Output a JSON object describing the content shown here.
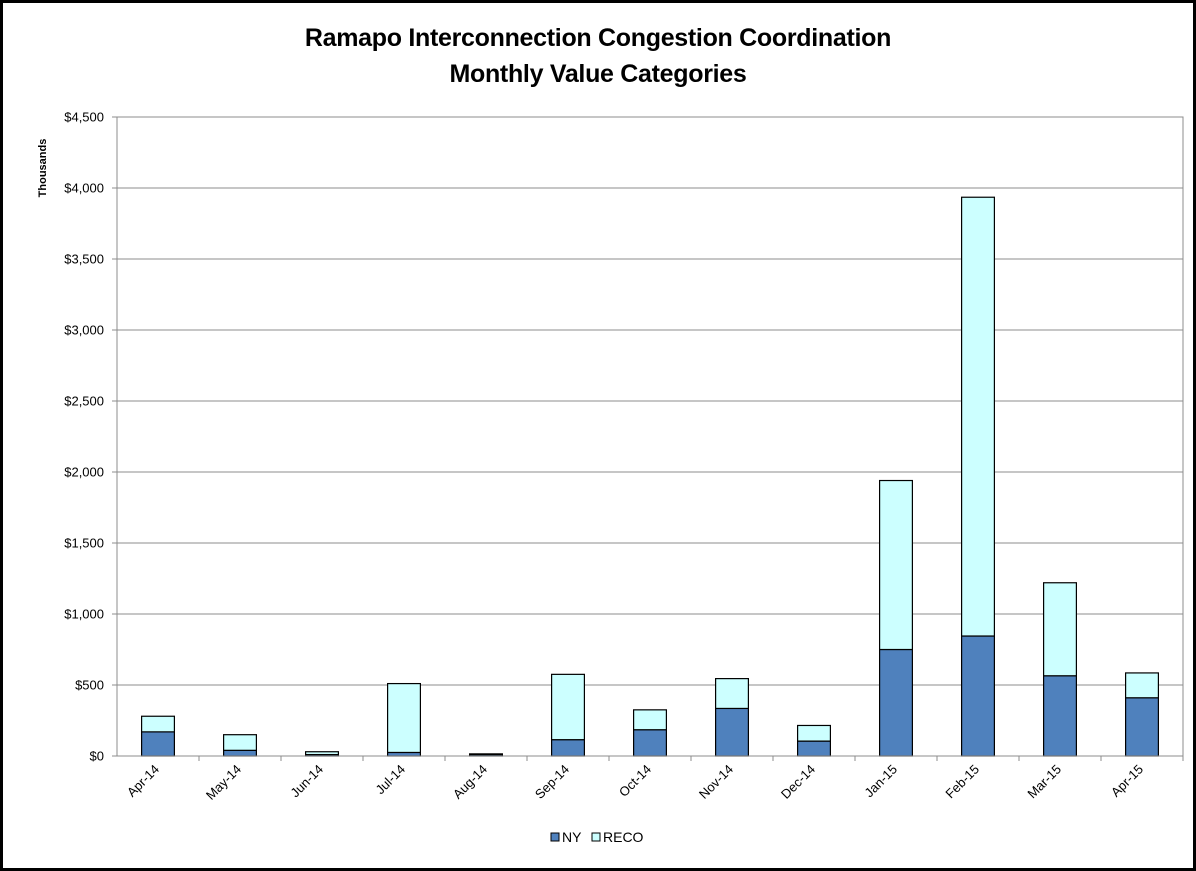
{
  "chart_data": {
    "type": "bar",
    "stacked": true,
    "title": "Ramapo Interconnection Congestion Coordination",
    "subtitle": "Monthly Value Categories",
    "ylabel": "Thousands",
    "xlabel": "",
    "ylim": [
      0,
      4500
    ],
    "ytick_step": 500,
    "ytick_labels": [
      "$0",
      "$500",
      "$1,000",
      "$1,500",
      "$2,000",
      "$2,500",
      "$3,000",
      "$3,500",
      "$4,000",
      "$4,500"
    ],
    "grid": true,
    "legend_position": "bottom",
    "categories": [
      "Apr-14",
      "May-14",
      "Jun-14",
      "Jul-14",
      "Aug-14",
      "Sep-14",
      "Oct-14",
      "Nov-14",
      "Dec-14",
      "Jan-15",
      "Feb-15",
      "Mar-15",
      "Apr-15"
    ],
    "series": [
      {
        "name": "NY",
        "color": "#4f81bd",
        "values": [
          170,
          40,
          10,
          25,
          10,
          115,
          185,
          335,
          105,
          750,
          845,
          565,
          410
        ]
      },
      {
        "name": "RECO",
        "color": "#ccffff",
        "values": [
          110,
          110,
          20,
          485,
          5,
          460,
          140,
          210,
          110,
          1190,
          3090,
          655,
          175
        ]
      }
    ]
  }
}
